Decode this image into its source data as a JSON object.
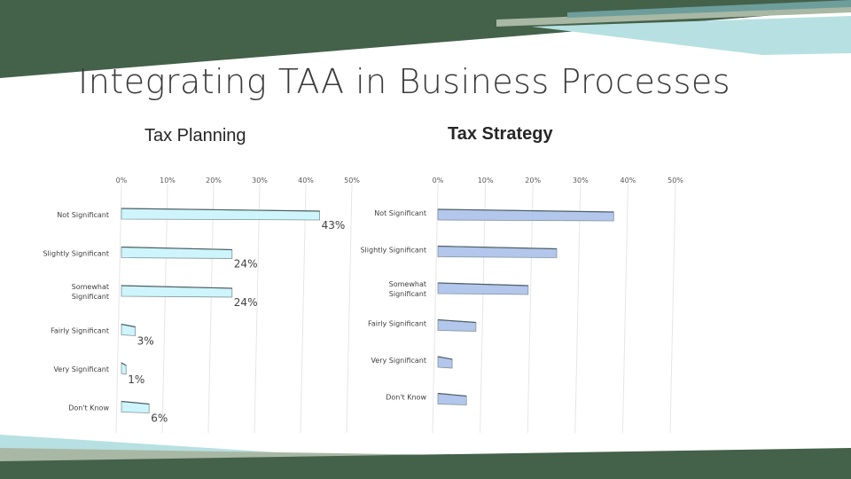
{
  "slide": {
    "title": "Integrating TAA in Business Processes"
  },
  "colors": {
    "dark_green": "#44614a",
    "sage": "#a9b8a4",
    "light_blue": "#b7e0e2",
    "teal": "#6d9e9c",
    "bar_left": "#cdf5fb",
    "bar_right": "#b3c6ec"
  },
  "chart_data": [
    {
      "type": "bar",
      "orientation": "horizontal",
      "title": "Tax Planning",
      "categories": [
        "Not Significant",
        "Slightly Significant",
        "Somewhat Significant",
        "Fairly Significant",
        "Very Significant",
        "Don't Know"
      ],
      "values": [
        43,
        24,
        24,
        3,
        1,
        6
      ],
      "data_labels": [
        "43%",
        "24%",
        "24%",
        "3%",
        "1%",
        "6%"
      ],
      "x_ticks": [
        "0%",
        "10%",
        "20%",
        "30%",
        "40%",
        "50%"
      ],
      "xlim": [
        0,
        50
      ],
      "grid": true,
      "legend": "none"
    },
    {
      "type": "bar",
      "orientation": "horizontal",
      "title": "Tax Strategy",
      "categories": [
        "Not Significant",
        "Slightly Significant",
        "Somewhat Significant",
        "Fairly Significant",
        "Very Significant",
        "Don't Know"
      ],
      "values": [
        37,
        25,
        19,
        8,
        3,
        6
      ],
      "x_ticks": [
        "0%",
        "10%",
        "20%",
        "30%",
        "40%",
        "50%"
      ],
      "xlim": [
        0,
        50
      ],
      "grid": true,
      "legend": "none"
    }
  ]
}
